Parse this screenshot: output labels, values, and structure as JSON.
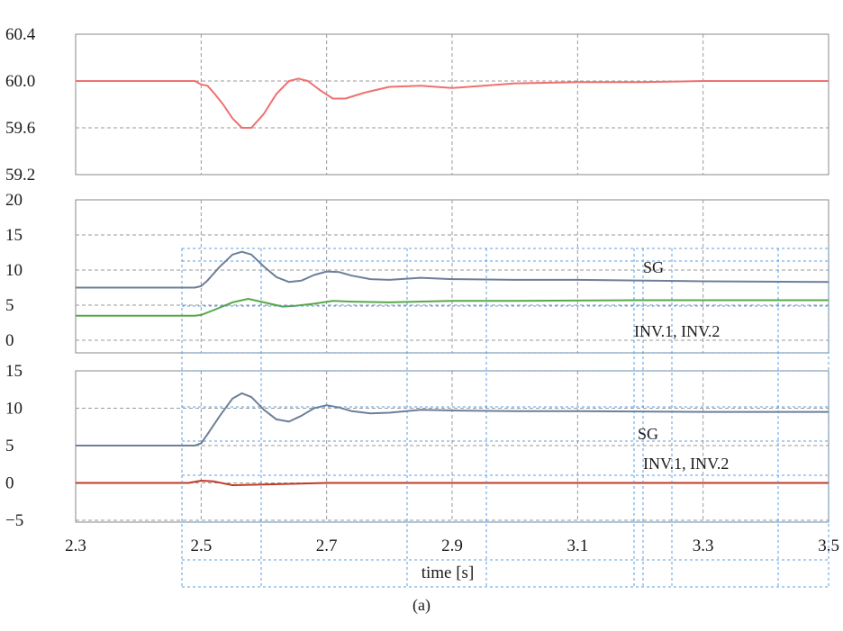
{
  "caption": "(a)",
  "xlabel": "time [s]",
  "chart_data": [
    {
      "type": "line",
      "panel": "top",
      "xlim": [
        2.3,
        3.5
      ],
      "ylim": [
        59.2,
        60.4
      ],
      "yticks": [
        "60.4",
        "60.0",
        "59.6",
        "59.2"
      ],
      "grid": true,
      "series": [
        {
          "color": "#f07070",
          "x": [
            2.3,
            2.49,
            2.5,
            2.51,
            2.52,
            2.535,
            2.55,
            2.565,
            2.58,
            2.6,
            2.62,
            2.64,
            2.655,
            2.67,
            2.69,
            2.71,
            2.73,
            2.76,
            2.8,
            2.85,
            2.9,
            2.95,
            3.0,
            3.1,
            3.2,
            3.3,
            3.5
          ],
          "y": [
            60.0,
            60.0,
            59.97,
            59.96,
            59.9,
            59.8,
            59.68,
            59.6,
            59.6,
            59.72,
            59.89,
            60.0,
            60.02,
            60.0,
            59.92,
            59.85,
            59.85,
            59.9,
            59.95,
            59.96,
            59.94,
            59.96,
            59.98,
            59.99,
            59.99,
            60.0,
            60.0
          ]
        }
      ]
    },
    {
      "type": "line",
      "panel": "middle",
      "xlim": [
        2.3,
        3.5
      ],
      "ylim": [
        0,
        20
      ],
      "yticks": [
        "20",
        "15",
        "10",
        "5",
        "0"
      ],
      "grid": true,
      "series": [
        {
          "name": "SG",
          "color": "#6d7f99",
          "x": [
            2.3,
            2.49,
            2.5,
            2.51,
            2.53,
            2.55,
            2.565,
            2.58,
            2.6,
            2.62,
            2.64,
            2.66,
            2.68,
            2.7,
            2.72,
            2.74,
            2.77,
            2.8,
            2.85,
            2.9,
            3.0,
            3.1,
            3.3,
            3.5
          ],
          "y": [
            7.5,
            7.5,
            7.7,
            8.5,
            10.5,
            12.2,
            12.6,
            12.2,
            10.5,
            9.0,
            8.3,
            8.5,
            9.3,
            9.8,
            9.7,
            9.2,
            8.7,
            8.6,
            8.9,
            8.7,
            8.6,
            8.6,
            8.4,
            8.3
          ]
        },
        {
          "name": "INV.1, INV.2",
          "color": "#58a84a",
          "x": [
            2.3,
            2.49,
            2.5,
            2.52,
            2.55,
            2.575,
            2.6,
            2.63,
            2.65,
            2.68,
            2.71,
            2.74,
            2.8,
            2.9,
            3.0,
            3.2,
            3.5
          ],
          "y": [
            3.5,
            3.5,
            3.6,
            4.3,
            5.4,
            5.9,
            5.4,
            4.8,
            4.9,
            5.2,
            5.6,
            5.5,
            5.4,
            5.6,
            5.6,
            5.7,
            5.7
          ]
        }
      ]
    },
    {
      "type": "line",
      "panel": "bottom",
      "xlim": [
        2.3,
        3.5
      ],
      "ylim": [
        -5,
        15
      ],
      "yticks": [
        "15",
        "10",
        "5",
        "0",
        "−5"
      ],
      "xticks": [
        "2.3",
        "2.5",
        "2.7",
        "2.9",
        "3.1",
        "3.3",
        "3.5"
      ],
      "grid": true,
      "series": [
        {
          "name": "SG",
          "color": "#6d7f99",
          "x": [
            2.3,
            2.49,
            2.5,
            2.51,
            2.53,
            2.55,
            2.565,
            2.58,
            2.6,
            2.62,
            2.64,
            2.66,
            2.68,
            2.7,
            2.72,
            2.74,
            2.77,
            2.8,
            2.85,
            2.9,
            3.0,
            3.1,
            3.3,
            3.5
          ],
          "y": [
            5.0,
            5.0,
            5.3,
            6.5,
            9.0,
            11.3,
            12.0,
            11.5,
            9.8,
            8.5,
            8.2,
            9.0,
            10.0,
            10.4,
            10.1,
            9.6,
            9.3,
            9.4,
            9.8,
            9.7,
            9.6,
            9.6,
            9.5,
            9.5
          ]
        },
        {
          "name": "INV.1, INV.2",
          "color": "#c0392b",
          "x": [
            2.3,
            2.48,
            2.5,
            2.52,
            2.55,
            2.6,
            2.7,
            2.8,
            3.0,
            3.5
          ],
          "y": [
            0.0,
            0.0,
            0.3,
            0.2,
            -0.3,
            -0.2,
            0.0,
            0.0,
            0.0,
            0.0
          ]
        }
      ]
    }
  ],
  "annotations": {
    "mid_sg": "SG",
    "mid_inv": "INV.1, INV.2",
    "bot_sg": "SG",
    "bot_inv": "INV.1, INV.2"
  }
}
